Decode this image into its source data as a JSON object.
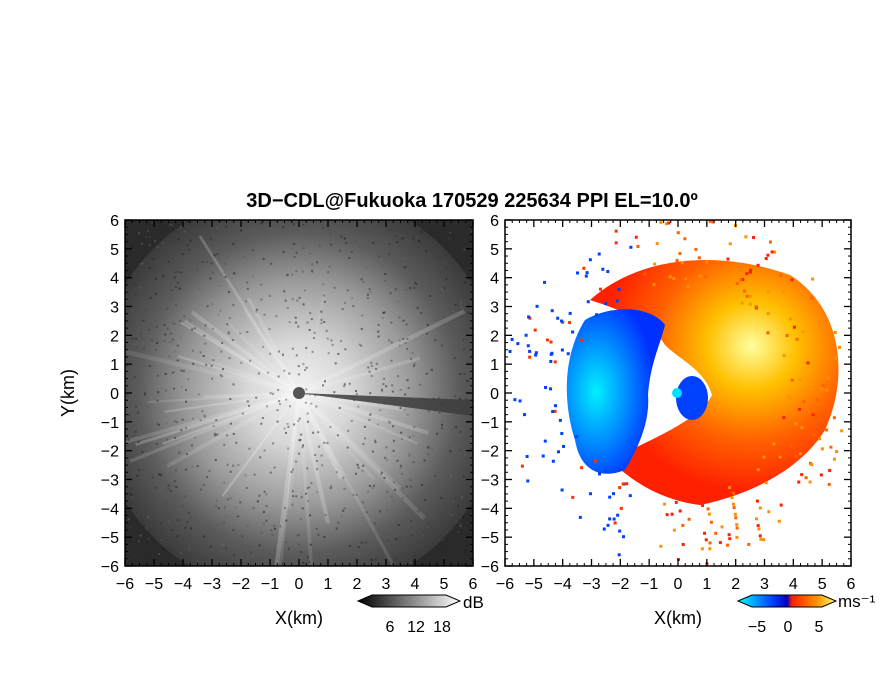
{
  "title": "3D−CDL@Fukuoka 170529 225634 PPI EL=10.0º",
  "chart_data": [
    {
      "type": "heatmap",
      "panel": "reflectivity",
      "xlabel": "X(km)",
      "ylabel": "Y(km)",
      "xlim": [
        -6,
        6
      ],
      "ylim": [
        -6,
        6
      ],
      "xticks": [
        "−6",
        "−5",
        "−4",
        "−3",
        "−2",
        "−1",
        "0",
        "1",
        "2",
        "3",
        "4",
        "5",
        "6"
      ],
      "yticks": [
        "6",
        "5",
        "4",
        "3",
        "2",
        "1",
        "0",
        "−1",
        "−2",
        "−3",
        "−4",
        "−5",
        "−6"
      ],
      "colorbar": {
        "unit": "dB",
        "ticks": [
          "6",
          "12",
          "18"
        ],
        "colormap": "grayscale (black to white)",
        "colors": [
          "#000000",
          "#ffffff"
        ]
      },
      "grid": false
    },
    {
      "type": "heatmap",
      "panel": "doppler velocity",
      "xlabel": "X(km)",
      "ylabel": "",
      "xlim": [
        -6,
        6
      ],
      "ylim": [
        -6,
        6
      ],
      "xticks": [
        "−6",
        "−5",
        "−4",
        "−3",
        "−2",
        "−1",
        "0",
        "1",
        "2",
        "3",
        "4",
        "5",
        "6"
      ],
      "yticks": [
        "6",
        "5",
        "4",
        "3",
        "2",
        "1",
        "0",
        "−1",
        "−2",
        "−3",
        "−4",
        "−5",
        "−6"
      ],
      "colorbar": {
        "unit": "ms⁻¹",
        "ticks": [
          "−5",
          "0",
          "5"
        ],
        "colormap": "cyan-blue-red-yellow",
        "colors": [
          "#00ffff",
          "#0040ff",
          "#ff2000",
          "#ffff60"
        ]
      },
      "grid": false
    }
  ]
}
